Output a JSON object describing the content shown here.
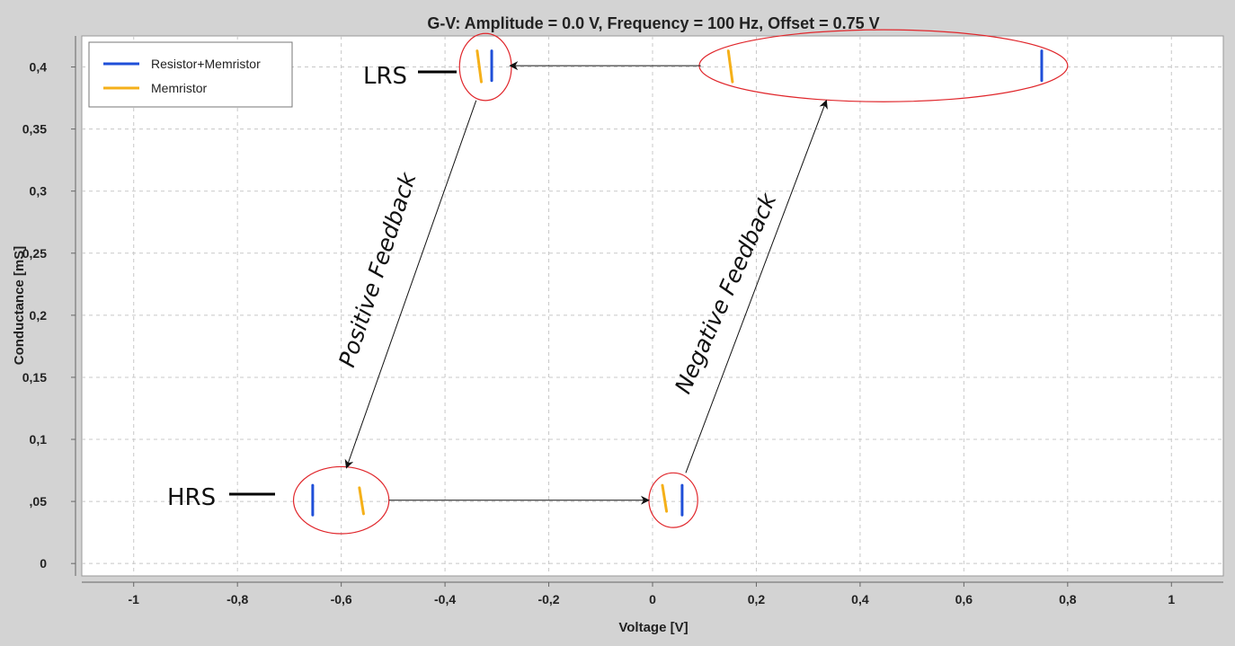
{
  "chart_data": {
    "type": "scatter",
    "title": "G-V: Amplitude = 0.0 V, Frequency = 100 Hz, Offset = 0.75 V",
    "xlabel": "Voltage [V]",
    "ylabel": "Conductance [mS]",
    "xlim": [
      -1.1,
      1.1
    ],
    "ylim": [
      -0.01,
      0.425
    ],
    "grid": true,
    "legend_position": "top-left",
    "x_ticks": [
      {
        "value": -1,
        "label": "-1"
      },
      {
        "value": -0.8,
        "label": "-0,8"
      },
      {
        "value": -0.6,
        "label": "-0,6"
      },
      {
        "value": -0.4,
        "label": "-0,4"
      },
      {
        "value": -0.2,
        "label": "-0,2"
      },
      {
        "value": 0,
        "label": "0"
      },
      {
        "value": 0.2,
        "label": "0,2"
      },
      {
        "value": 0.4,
        "label": "0,4"
      },
      {
        "value": 0.6,
        "label": "0,6"
      },
      {
        "value": 0.8,
        "label": "0,8"
      },
      {
        "value": 1,
        "label": "1"
      }
    ],
    "y_ticks": [
      {
        "value": 0,
        "label": "0"
      },
      {
        "value": 0.05,
        "label": ",05"
      },
      {
        "value": 0.1,
        "label": "0,1"
      },
      {
        "value": 0.15,
        "label": "0,15"
      },
      {
        "value": 0.2,
        "label": "0,2"
      },
      {
        "value": 0.25,
        "label": "0,25"
      },
      {
        "value": 0.3,
        "label": "0,3"
      },
      {
        "value": 0.35,
        "label": "0,35"
      },
      {
        "value": 0.4,
        "label": "0,4"
      }
    ],
    "series": [
      {
        "name": "Resistor+Memristor",
        "color": "#1f4fd8",
        "segments": [
          {
            "x": [
              -0.31,
              -0.31
            ],
            "y": [
              0.389,
              0.413
            ]
          },
          {
            "x": [
              0.75,
              0.75
            ],
            "y": [
              0.389,
              0.413
            ]
          },
          {
            "x": [
              -0.655,
              -0.655
            ],
            "y": [
              0.039,
              0.063
            ]
          },
          {
            "x": [
              0.057,
              0.057
            ],
            "y": [
              0.039,
              0.063
            ]
          }
        ]
      },
      {
        "name": "Memristor",
        "color": "#f5b019",
        "segments": [
          {
            "x": [
              -0.338,
              -0.33
            ],
            "y": [
              0.413,
              0.388
            ]
          },
          {
            "x": [
              0.146,
              0.154
            ],
            "y": [
              0.413,
              0.388
            ]
          },
          {
            "x": [
              -0.565,
              -0.557
            ],
            "y": [
              0.061,
              0.04
            ]
          },
          {
            "x": [
              0.019,
              0.027
            ],
            "y": [
              0.063,
              0.042
            ]
          }
        ]
      }
    ],
    "annotations": {
      "lrs": {
        "text": "LRS",
        "x": -0.33,
        "y": 0.4
      },
      "hrs": {
        "text": "HRS",
        "x": -0.6,
        "y": 0.051
      },
      "positive_feedback": {
        "text": "Positive Feedback"
      },
      "negative_feedback": {
        "text": "Negative Feedback"
      },
      "ellipses": [
        {
          "cx": -0.322,
          "cy": 0.4,
          "rx": 0.05,
          "ry": 0.027
        },
        {
          "cx": 0.445,
          "cy": 0.401,
          "rx": 0.355,
          "ry": 0.029
        },
        {
          "cx": -0.6,
          "cy": 0.051,
          "rx": 0.092,
          "ry": 0.027
        },
        {
          "cx": 0.04,
          "cy": 0.051,
          "rx": 0.047,
          "ry": 0.022
        }
      ],
      "arrows": [
        {
          "from": [
            0.093,
            0.401
          ],
          "to": [
            -0.275,
            0.401
          ]
        },
        {
          "from": [
            -0.34,
            0.373
          ],
          "to": [
            -0.59,
            0.077
          ]
        },
        {
          "from": [
            -0.508,
            0.051
          ],
          "to": [
            -0.007,
            0.051
          ]
        },
        {
          "from": [
            0.064,
            0.073
          ],
          "to": [
            0.335,
            0.373
          ]
        }
      ]
    }
  }
}
